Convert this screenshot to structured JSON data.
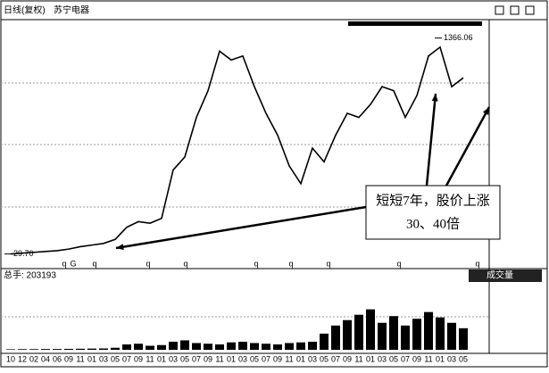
{
  "chart_data": [
    {
      "type": "line",
      "title": "日线(复权)",
      "subtitle": "苏宁电器",
      "color": "#000000",
      "categories": [
        "10",
        "12",
        "02",
        "04",
        "06",
        "09",
        "11",
        "01",
        "03",
        "05",
        "07",
        "09",
        "11",
        "01",
        "03",
        "05",
        "07",
        "09",
        "11",
        "01",
        "03",
        "05",
        "07",
        "09",
        "11",
        "01",
        "03",
        "05",
        "07",
        "09",
        "11",
        "01",
        "03",
        "05",
        "07",
        "09",
        "11",
        "01",
        "03",
        "05"
      ],
      "values": [
        30,
        35,
        40,
        45,
        50,
        60,
        75,
        85,
        95,
        120,
        195,
        230,
        220,
        250,
        550,
        630,
        875,
        1040,
        1285,
        1230,
        1255,
        1065,
        900,
        765,
        575,
        465,
        685,
        600,
        765,
        900,
        875,
        955,
        1065,
        1040,
        875,
        1010,
        1255,
        1310,
        1065,
        1120
      ],
      "ylim": [
        0,
        1480
      ],
      "high_label": 1366.06,
      "low_label": {
        "value": 29.7,
        "label": "29.70"
      },
      "markers": [
        "q",
        "G",
        "q",
        "q",
        "q",
        "q",
        "q",
        "q",
        "q",
        "q"
      ],
      "annotation": [
        "短短7年，股价上涨",
        "30、40倍"
      ]
    },
    {
      "type": "bar",
      "title": "总手: 203193",
      "indicator": "成交量",
      "color": "#000000",
      "values": [
        4000,
        5000,
        5000,
        6000,
        6000,
        7000,
        8000,
        9000,
        10000,
        15000,
        40000,
        45000,
        30000,
        35000,
        60000,
        70000,
        50000,
        45000,
        40000,
        55000,
        60000,
        50000,
        45000,
        40000,
        50000,
        55000,
        60000,
        120000,
        180000,
        220000,
        260000,
        300000,
        200000,
        250000,
        180000,
        230000,
        280000,
        240000,
        200000,
        160000
      ],
      "ylim": [
        0,
        450000
      ]
    }
  ]
}
